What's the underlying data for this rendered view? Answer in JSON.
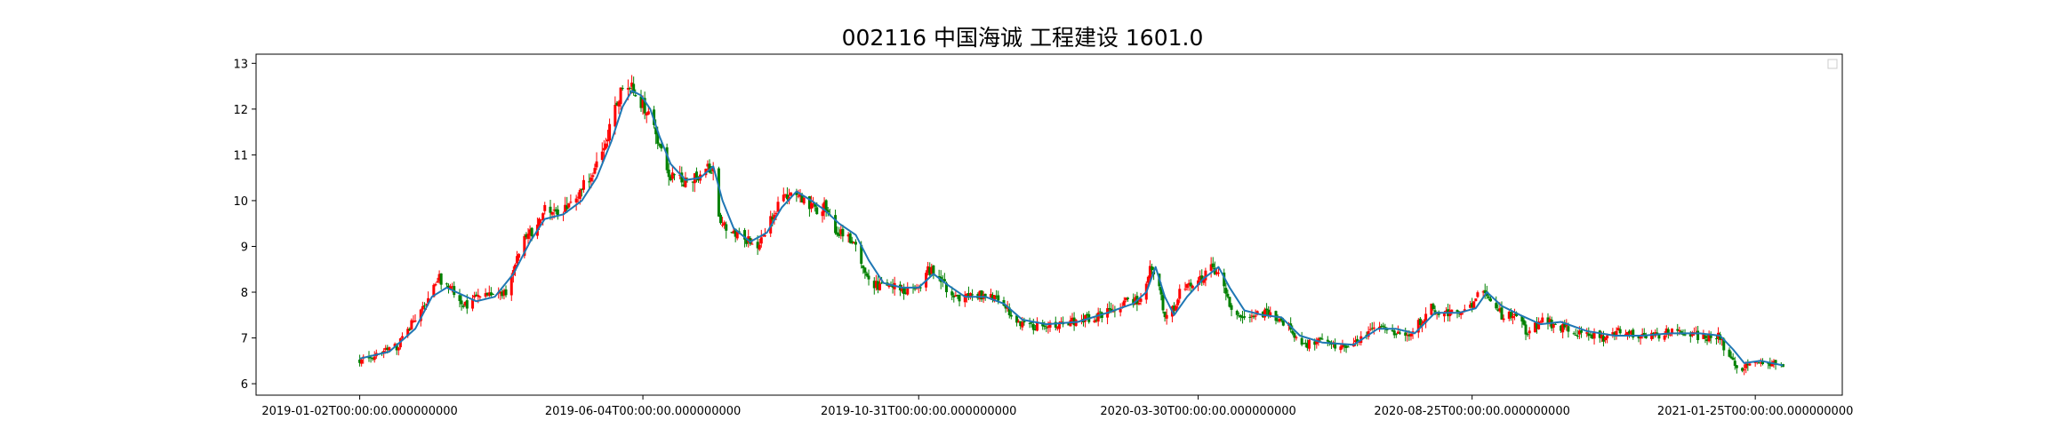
{
  "chart_data": {
    "type": "candlestick",
    "title": "002116 中国海诚 工程建设 1601.0",
    "xlabel": "",
    "ylabel": "",
    "x_range": [
      "2018-11-07",
      "2021-03-13"
    ],
    "ylim": [
      5.75,
      13.2
    ],
    "y_ticks": [
      6,
      7,
      8,
      9,
      10,
      11,
      12,
      13
    ],
    "y_tick_labels": [
      "6",
      "7",
      "8",
      "9",
      "10",
      "11",
      "12",
      "13"
    ],
    "x_ticks": [
      "2019-01-02",
      "2019-06-04",
      "2019-10-31",
      "2020-03-30",
      "2020-08-25",
      "2021-01-25"
    ],
    "x_tick_labels": [
      "2019-01-02T00:00:00.000000000",
      "2019-06-04T00:00:00.000000000",
      "2019-10-31T00:00:00.000000000",
      "2020-03-30T00:00:00.000000000",
      "2020-08-25T00:00:00.000000000",
      "2021-01-25T00:00:00.000000000"
    ],
    "grid": false,
    "legend": "top-right",
    "up_color": "#ff0000",
    "down_color": "#008000",
    "line_color": "#1f77b4",
    "date_range": [
      "2019-01-02",
      "2021-02-09"
    ],
    "close_path": [
      [
        "2019-01-02",
        6.5
      ],
      [
        "2019-01-12",
        6.65
      ],
      [
        "2019-01-22",
        6.8
      ],
      [
        "2019-01-30",
        7.3
      ],
      [
        "2019-02-06",
        7.7
      ],
      [
        "2019-02-14",
        8.3
      ],
      [
        "2019-02-22",
        8.0
      ],
      [
        "2019-02-28",
        7.7
      ],
      [
        "2019-03-07",
        7.9
      ],
      [
        "2019-03-15",
        7.95
      ],
      [
        "2019-03-22",
        8.0
      ],
      [
        "2019-03-30",
        9.0
      ],
      [
        "2019-04-06",
        9.4
      ],
      [
        "2019-04-13",
        9.9
      ],
      [
        "2019-04-20",
        9.7
      ],
      [
        "2019-04-27",
        9.9
      ],
      [
        "2019-05-04",
        10.4
      ],
      [
        "2019-05-10",
        10.8
      ],
      [
        "2019-05-17",
        11.6
      ],
      [
        "2019-05-22",
        12.3
      ],
      [
        "2019-05-26",
        12.55
      ],
      [
        "2019-05-30",
        12.4
      ],
      [
        "2019-06-04",
        12.1
      ],
      [
        "2019-06-09",
        11.9
      ],
      [
        "2019-06-14",
        11.0
      ],
      [
        "2019-06-19",
        10.5
      ],
      [
        "2019-06-26",
        10.4
      ],
      [
        "2019-07-03",
        10.5
      ],
      [
        "2019-07-08",
        10.8
      ],
      [
        "2019-07-12",
        10.6
      ],
      [
        "2019-07-16",
        9.5
      ],
      [
        "2019-07-22",
        9.3
      ],
      [
        "2019-07-29",
        9.15
      ],
      [
        "2019-08-06",
        9.0
      ],
      [
        "2019-08-12",
        9.6
      ],
      [
        "2019-08-18",
        10.0
      ],
      [
        "2019-08-24",
        10.2
      ],
      [
        "2019-08-30",
        10.0
      ],
      [
        "2019-09-05",
        9.8
      ],
      [
        "2019-09-10",
        9.9
      ],
      [
        "2019-09-16",
        9.4
      ],
      [
        "2019-09-22",
        9.2
      ],
      [
        "2019-09-27",
        9.0
      ],
      [
        "2019-10-03",
        8.3
      ],
      [
        "2019-10-10",
        8.1
      ],
      [
        "2019-10-17",
        8.1
      ],
      [
        "2019-10-24",
        8.05
      ],
      [
        "2019-10-31",
        8.1
      ],
      [
        "2019-11-05",
        8.5
      ],
      [
        "2019-11-10",
        8.4
      ],
      [
        "2019-11-16",
        8.0
      ],
      [
        "2019-11-23",
        7.85
      ],
      [
        "2019-11-30",
        7.95
      ],
      [
        "2019-12-08",
        7.9
      ],
      [
        "2019-12-15",
        7.8
      ],
      [
        "2019-12-22",
        7.4
      ],
      [
        "2019-12-30",
        7.25
      ],
      [
        "2020-01-10",
        7.3
      ],
      [
        "2020-01-22",
        7.35
      ],
      [
        "2020-02-02",
        7.45
      ],
      [
        "2020-02-12",
        7.6
      ],
      [
        "2020-02-20",
        7.8
      ],
      [
        "2020-02-28",
        7.8
      ],
      [
        "2020-03-04",
        8.6
      ],
      [
        "2020-03-08",
        8.3
      ],
      [
        "2020-03-12",
        7.5
      ],
      [
        "2020-03-16",
        7.6
      ],
      [
        "2020-03-20",
        8.0
      ],
      [
        "2020-03-26",
        8.2
      ],
      [
        "2020-04-01",
        8.3
      ],
      [
        "2020-04-06",
        8.5
      ],
      [
        "2020-04-10",
        8.4
      ],
      [
        "2020-04-15",
        7.8
      ],
      [
        "2020-04-21",
        7.45
      ],
      [
        "2020-04-30",
        7.5
      ],
      [
        "2020-05-08",
        7.55
      ],
      [
        "2020-05-15",
        7.35
      ],
      [
        "2020-05-21",
        7.1
      ],
      [
        "2020-05-27",
        6.85
      ],
      [
        "2020-06-04",
        6.95
      ],
      [
        "2020-06-12",
        6.85
      ],
      [
        "2020-06-20",
        6.85
      ],
      [
        "2020-06-28",
        7.05
      ],
      [
        "2020-07-05",
        7.3
      ],
      [
        "2020-07-12",
        7.15
      ],
      [
        "2020-07-20",
        7.05
      ],
      [
        "2020-07-28",
        7.35
      ],
      [
        "2020-08-03",
        7.65
      ],
      [
        "2020-08-10",
        7.5
      ],
      [
        "2020-08-15",
        7.65
      ],
      [
        "2020-08-20",
        7.55
      ],
      [
        "2020-08-26",
        7.7
      ],
      [
        "2020-08-30",
        8.2
      ],
      [
        "2020-09-04",
        7.8
      ],
      [
        "2020-09-10",
        7.5
      ],
      [
        "2020-09-18",
        7.45
      ],
      [
        "2020-09-24",
        7.1
      ],
      [
        "2020-10-02",
        7.4
      ],
      [
        "2020-10-10",
        7.25
      ],
      [
        "2020-10-18",
        7.15
      ],
      [
        "2020-10-26",
        7.1
      ],
      [
        "2020-11-04",
        7.0
      ],
      [
        "2020-11-12",
        7.15
      ],
      [
        "2020-11-20",
        7.05
      ],
      [
        "2020-11-28",
        7.0
      ],
      [
        "2020-12-06",
        7.1
      ],
      [
        "2020-12-14",
        7.15
      ],
      [
        "2020-12-22",
        7.05
      ],
      [
        "2020-12-30",
        7.0
      ],
      [
        "2021-01-05",
        7.05
      ],
      [
        "2021-01-11",
        6.55
      ],
      [
        "2021-01-16",
        6.3
      ],
      [
        "2021-01-23",
        6.45
      ],
      [
        "2021-01-31",
        6.5
      ],
      [
        "2021-02-09",
        6.35
      ]
    ],
    "ma_path": [
      [
        "2019-01-02",
        6.55
      ],
      [
        "2019-01-18",
        6.7
      ],
      [
        "2019-02-01",
        7.2
      ],
      [
        "2019-02-10",
        7.9
      ],
      [
        "2019-02-18",
        8.1
      ],
      [
        "2019-02-26",
        7.95
      ],
      [
        "2019-03-06",
        7.8
      ],
      [
        "2019-03-16",
        7.9
      ],
      [
        "2019-03-26",
        8.4
      ],
      [
        "2019-04-04",
        9.1
      ],
      [
        "2019-04-12",
        9.6
      ],
      [
        "2019-04-22",
        9.7
      ],
      [
        "2019-05-02",
        10.0
      ],
      [
        "2019-05-10",
        10.5
      ],
      [
        "2019-05-18",
        11.3
      ],
      [
        "2019-05-24",
        12.05
      ],
      [
        "2019-05-29",
        12.4
      ],
      [
        "2019-06-03",
        12.3
      ],
      [
        "2019-06-08",
        12.0
      ],
      [
        "2019-06-13",
        11.4
      ],
      [
        "2019-06-19",
        10.8
      ],
      [
        "2019-06-27",
        10.45
      ],
      [
        "2019-07-05",
        10.5
      ],
      [
        "2019-07-12",
        10.75
      ],
      [
        "2019-07-17",
        10.0
      ],
      [
        "2019-07-23",
        9.4
      ],
      [
        "2019-08-01",
        9.1
      ],
      [
        "2019-08-10",
        9.3
      ],
      [
        "2019-08-18",
        9.85
      ],
      [
        "2019-08-26",
        10.2
      ],
      [
        "2019-09-03",
        10.0
      ],
      [
        "2019-09-10",
        9.8
      ],
      [
        "2019-09-18",
        9.5
      ],
      [
        "2019-09-27",
        9.25
      ],
      [
        "2019-10-04",
        8.7
      ],
      [
        "2019-10-12",
        8.2
      ],
      [
        "2019-10-22",
        8.1
      ],
      [
        "2019-10-31",
        8.1
      ],
      [
        "2019-11-08",
        8.4
      ],
      [
        "2019-11-16",
        8.15
      ],
      [
        "2019-11-25",
        7.9
      ],
      [
        "2019-12-06",
        7.9
      ],
      [
        "2019-12-16",
        7.75
      ],
      [
        "2019-12-26",
        7.4
      ],
      [
        "2020-01-08",
        7.3
      ],
      [
        "2020-01-25",
        7.35
      ],
      [
        "2020-02-10",
        7.55
      ],
      [
        "2020-02-24",
        7.75
      ],
      [
        "2020-03-02",
        8.0
      ],
      [
        "2020-03-07",
        8.55
      ],
      [
        "2020-03-12",
        7.9
      ],
      [
        "2020-03-17",
        7.5
      ],
      [
        "2020-03-24",
        7.9
      ],
      [
        "2020-04-02",
        8.3
      ],
      [
        "2020-04-10",
        8.55
      ],
      [
        "2020-04-16",
        8.1
      ],
      [
        "2020-04-24",
        7.6
      ],
      [
        "2020-05-04",
        7.5
      ],
      [
        "2020-05-14",
        7.45
      ],
      [
        "2020-05-24",
        7.05
      ],
      [
        "2020-06-05",
        6.9
      ],
      [
        "2020-06-22",
        6.85
      ],
      [
        "2020-07-05",
        7.2
      ],
      [
        "2020-07-15",
        7.2
      ],
      [
        "2020-07-25",
        7.1
      ],
      [
        "2020-08-05",
        7.55
      ],
      [
        "2020-08-18",
        7.55
      ],
      [
        "2020-08-27",
        7.65
      ],
      [
        "2020-09-02",
        8.0
      ],
      [
        "2020-09-10",
        7.7
      ],
      [
        "2020-09-20",
        7.5
      ],
      [
        "2020-10-01",
        7.3
      ],
      [
        "2020-10-12",
        7.35
      ],
      [
        "2020-10-26",
        7.15
      ],
      [
        "2020-11-10",
        7.05
      ],
      [
        "2020-11-25",
        7.05
      ],
      [
        "2020-12-10",
        7.1
      ],
      [
        "2020-12-26",
        7.1
      ],
      [
        "2021-01-06",
        7.05
      ],
      [
        "2021-01-13",
        6.75
      ],
      [
        "2021-01-19",
        6.45
      ],
      [
        "2021-01-28",
        6.5
      ],
      [
        "2021-02-09",
        6.4
      ]
    ]
  }
}
